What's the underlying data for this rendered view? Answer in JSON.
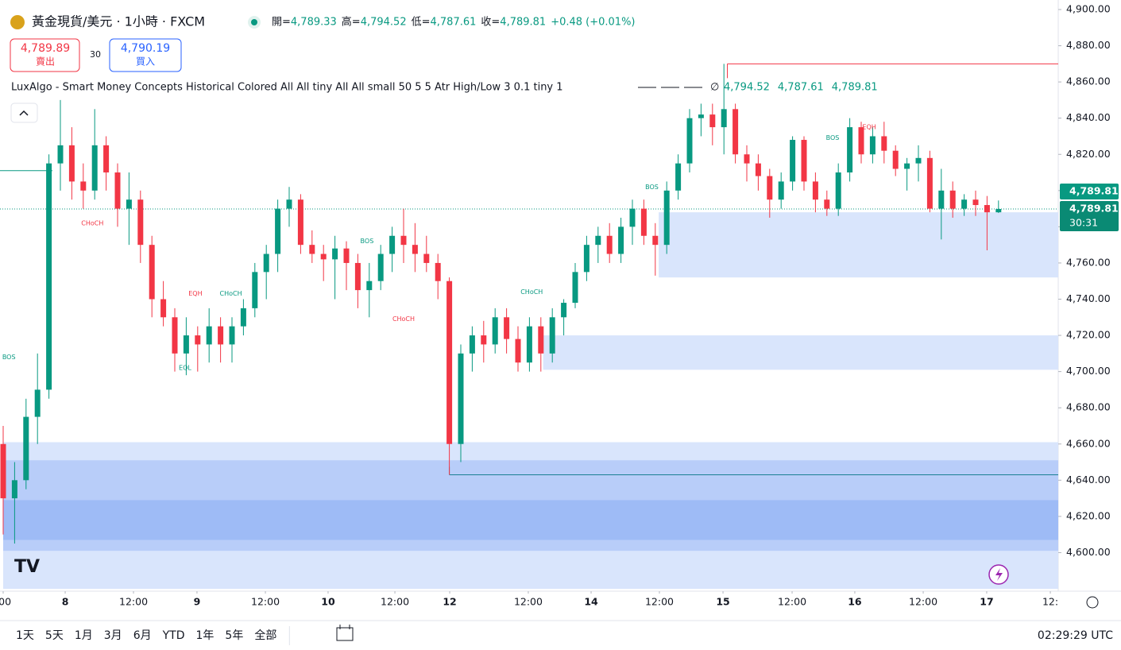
{
  "header": {
    "title": "黃金現貨/美元 · 1小時 · FXCM",
    "ohlc": [
      {
        "label": "開=",
        "value": "4,789.33"
      },
      {
        "label": "高=",
        "value": "4,794.52"
      },
      {
        "label": "低=",
        "value": "4,787.61"
      },
      {
        "label": "收=",
        "value": "4,789.81"
      }
    ],
    "change": "+0.48 (+0.01%)",
    "sell": {
      "price": "4,789.89",
      "label": "賣出"
    },
    "spread": "30",
    "buy": {
      "price": "4,790.19",
      "label": "買入"
    },
    "indicator": {
      "name": "LuxAlgo - Smart Money Concepts Historical Colored All All tiny All All small 50 5 5 Atr High/Low 3 0.1 tiny 1",
      "symbol": "∅",
      "values": [
        "4,794.52",
        "4,787.61",
        "4,789.81"
      ]
    }
  },
  "chart_data": {
    "type": "candlestick",
    "up_color": "#089981",
    "down_color": "#f23645",
    "open": [
      4660,
      4630,
      4640,
      4675,
      4690,
      4815,
      4825,
      4805,
      4800,
      4825,
      4810,
      4790,
      4795,
      4770,
      4740,
      4730,
      4710,
      4720,
      4715,
      4725,
      4715,
      4725,
      4735,
      4755,
      4765,
      4790,
      4795,
      4770,
      4765,
      4762,
      4768,
      4760,
      4745,
      4750,
      4765,
      4775,
      4770,
      4765,
      4760,
      4750,
      4660,
      4710,
      4720,
      4715,
      4730,
      4718,
      4705,
      4725,
      4710,
      4730,
      4738,
      4755,
      4770,
      4775,
      4765,
      4780,
      4790,
      4775,
      4770,
      4800,
      4815,
      4840,
      4842,
      4835,
      4845,
      4820,
      4815,
      4808,
      4795,
      4805,
      4828,
      4805,
      4795,
      4790,
      4810,
      4835,
      4820,
      4830,
      4822,
      4812,
      4815,
      4818,
      4790,
      4800,
      4790,
      4795,
      4792,
      4788
    ],
    "high": [
      4670,
      4650,
      4685,
      4710,
      4820,
      4850,
      4835,
      4815,
      4845,
      4830,
      4815,
      4810,
      4800,
      4775,
      4750,
      4735,
      4730,
      4725,
      4735,
      4730,
      4730,
      4740,
      4760,
      4770,
      4795,
      4802,
      4798,
      4778,
      4770,
      4775,
      4772,
      4765,
      4760,
      4770,
      4780,
      4790,
      4782,
      4775,
      4765,
      4752,
      4715,
      4725,
      4728,
      4735,
      4735,
      4725,
      4730,
      4730,
      4735,
      4740,
      4760,
      4775,
      4780,
      4782,
      4785,
      4795,
      4795,
      4782,
      4805,
      4820,
      4845,
      4848,
      4848,
      4870,
      4848,
      4825,
      4820,
      4812,
      4810,
      4830,
      4830,
      4810,
      4800,
      4815,
      4840,
      4838,
      4835,
      4838,
      4825,
      4818,
      4825,
      4822,
      4812,
      4805,
      4798,
      4800,
      4797,
      4794.52
    ],
    "low": [
      4610,
      4605,
      4635,
      4660,
      4685,
      4800,
      4795,
      4790,
      4795,
      4800,
      4780,
      4770,
      4760,
      4730,
      4725,
      4700,
      4698,
      4700,
      4705,
      4705,
      4705,
      4720,
      4730,
      4740,
      4755,
      4780,
      4765,
      4760,
      4750,
      4740,
      4745,
      4735,
      4730,
      4745,
      4755,
      4760,
      4755,
      4755,
      4740,
      4643,
      4650,
      4700,
      4705,
      4710,
      4710,
      4700,
      4700,
      4700,
      4705,
      4720,
      4735,
      4750,
      4760,
      4760,
      4760,
      4770,
      4770,
      4753,
      4765,
      4795,
      4810,
      4830,
      4825,
      4820,
      4815,
      4805,
      4800,
      4785,
      4790,
      4800,
      4800,
      4788,
      4786,
      4786,
      4805,
      4815,
      4815,
      4815,
      4808,
      4800,
      4805,
      4788,
      4773,
      4785,
      4786,
      4786,
      4767,
      4787.61
    ],
    "close": [
      4630,
      4640,
      4675,
      4690,
      4815,
      4825,
      4805,
      4800,
      4825,
      4810,
      4790,
      4795,
      4770,
      4740,
      4730,
      4710,
      4720,
      4715,
      4725,
      4715,
      4725,
      4735,
      4755,
      4765,
      4790,
      4795,
      4770,
      4765,
      4762,
      4768,
      4760,
      4745,
      4750,
      4765,
      4775,
      4770,
      4765,
      4760,
      4750,
      4660,
      4710,
      4720,
      4715,
      4730,
      4718,
      4705,
      4725,
      4710,
      4730,
      4738,
      4755,
      4770,
      4775,
      4765,
      4780,
      4790,
      4775,
      4770,
      4800,
      4815,
      4840,
      4842,
      4835,
      4845,
      4820,
      4815,
      4808,
      4795,
      4805,
      4828,
      4805,
      4795,
      4790,
      4810,
      4835,
      4820,
      4830,
      4822,
      4812,
      4815,
      4818,
      4790,
      4800,
      4790,
      4795,
      4792,
      4788,
      4789.81
    ],
    "ylim": [
      4580,
      4900
    ],
    "yticks": [
      {
        "value": 4600,
        "label": "4,600.00"
      },
      {
        "value": 4620,
        "label": "4,620.00"
      },
      {
        "value": 4640,
        "label": "4,640.00"
      },
      {
        "value": 4660,
        "label": "4,660.00"
      },
      {
        "value": 4680,
        "label": "4,680.00"
      },
      {
        "value": 4700,
        "label": "4,700.00"
      },
      {
        "value": 4720,
        "label": "4,720.00"
      },
      {
        "value": 4740,
        "label": "4,740.00"
      },
      {
        "value": 4760,
        "label": "4,760.00"
      },
      {
        "value": 4780,
        "label": "4,780.00"
      },
      {
        "value": 4800,
        "label": "4,800.00"
      },
      {
        "value": 4820,
        "label": "4,820.00"
      },
      {
        "value": 4840,
        "label": "4,840.00"
      },
      {
        "value": 4860,
        "label": "4,860.00"
      },
      {
        "value": 4880,
        "label": "4,880.00"
      },
      {
        "value": 4900,
        "label": "4,900.00"
      }
    ],
    "xticks": [
      {
        "value": 0,
        "label": ":00"
      },
      {
        "value": 5.42,
        "label": "8"
      },
      {
        "value": 11.39,
        "label": "12:00"
      },
      {
        "value": 16.94,
        "label": "9"
      },
      {
        "value": 22.92,
        "label": "12:00"
      },
      {
        "value": 28.4,
        "label": "10"
      },
      {
        "value": 34.24,
        "label": "12:00"
      },
      {
        "value": 39.03,
        "label": "12"
      },
      {
        "value": 45.9,
        "label": "12:00"
      },
      {
        "value": 51.39,
        "label": "14"
      },
      {
        "value": 57.36,
        "label": "12:00"
      },
      {
        "value": 62.92,
        "label": "15"
      },
      {
        "value": 68.96,
        "label": "12:00"
      },
      {
        "value": 74.44,
        "label": "16"
      },
      {
        "value": 80.42,
        "label": "12:00"
      },
      {
        "value": 85.97,
        "label": "17"
      },
      {
        "value": 91.53,
        "label": "12:"
      }
    ],
    "zones": [
      {
        "from": 0,
        "top": 4661,
        "bottom": 4580,
        "color": "#d9e5fc"
      },
      {
        "from": 0,
        "top": 4651,
        "bottom": 4601,
        "color": "#b8cdf9"
      },
      {
        "from": 0,
        "top": 4629,
        "bottom": 4607,
        "color": "#9ebbf6"
      },
      {
        "from": 47.2,
        "top": 4720,
        "bottom": 4701,
        "color": "#d9e5fc"
      },
      {
        "from": 57.3,
        "top": 4788,
        "bottom": 4752,
        "color": "#d9e5fc"
      }
    ],
    "levels": [
      {
        "from": 63.3,
        "price": 4870,
        "color": "#f23645"
      },
      {
        "from": 39,
        "price": 4643,
        "color": "#1a7f93"
      },
      {
        "from": -0.3,
        "to": 4.3,
        "price": 4811,
        "color": "#089981"
      }
    ],
    "annotations": [
      {
        "text": "BOS",
        "x": 0.5,
        "y": 4708,
        "color": "#089981"
      },
      {
        "text": "CHoCH",
        "x": 7.8,
        "y": 4782,
        "color": "#f23645"
      },
      {
        "text": "EQH",
        "x": 16.8,
        "y": 4743,
        "color": "#f23645"
      },
      {
        "text": "CHoCH",
        "x": 19.9,
        "y": 4743,
        "color": "#089981"
      },
      {
        "text": "EQL",
        "x": 15.9,
        "y": 4702,
        "color": "#089981"
      },
      {
        "text": "BOS",
        "x": 31.8,
        "y": 4772,
        "color": "#089981"
      },
      {
        "text": "CHoCH",
        "x": 35,
        "y": 4729,
        "color": "#f23645"
      },
      {
        "text": "CHoCH",
        "x": 46.2,
        "y": 4744,
        "color": "#089981"
      },
      {
        "text": "BOS",
        "x": 56.7,
        "y": 4802,
        "color": "#089981"
      },
      {
        "text": "BOS",
        "x": 72.5,
        "y": 4829,
        "color": "#089981"
      },
      {
        "text": "EQH",
        "x": 75.7,
        "y": 4835,
        "color": "#f23645"
      }
    ],
    "last_price": {
      "value": 4789.81,
      "label": "4,789.81",
      "countdown": "30:31"
    }
  },
  "footer": {
    "periods": [
      "1天",
      "5天",
      "1月",
      "3月",
      "6月",
      "YTD",
      "1年",
      "5年",
      "全部"
    ],
    "clock": "02:29:29 UTC"
  }
}
